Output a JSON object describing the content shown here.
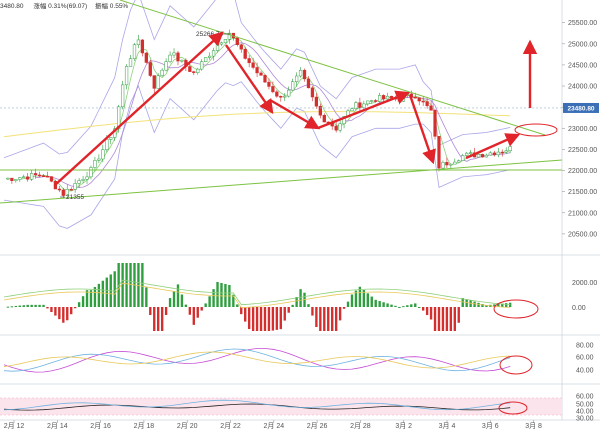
{
  "header": {
    "price_fragment": "3480.80",
    "change_label": "涨幅",
    "change_value": "0.31%(69.07)",
    "amplitude_label": "振幅",
    "amplitude_value": "0.55%"
  },
  "chart_data": {
    "type": "candlestick",
    "title": "",
    "ylim": [
      20000,
      25800
    ],
    "y_ticks": [
      "25500.00",
      "25000.00",
      "24500.00",
      "24000.00",
      "23500.00",
      "23000.00",
      "22500.00",
      "22000.00",
      "21500.00",
      "21000.00",
      "20500.00"
    ],
    "x_ticks": [
      "2月 12",
      "2月 14",
      "2月 16",
      "2月 18",
      "2月 20",
      "2月 22",
      "2月 24",
      "2月 26",
      "2月 28",
      "3月 2",
      "3月 4",
      "3月 6",
      "3月 8"
    ],
    "last_price_label": "23480.80",
    "annotations": {
      "high": "25266.74",
      "low": "21355"
    },
    "colors": {
      "up": "#2e9e3e",
      "down": "#d32f2f",
      "trendline": "#7dc242",
      "arrow": "#e0242a",
      "band": "#a9a6e8",
      "ma_yellow": "#f2e27a"
    }
  },
  "indicators": {
    "macd": {
      "ticks": [
        "2000.00",
        "0.00"
      ]
    },
    "osc1": {
      "ticks": [
        "80.00",
        "60.00",
        "40.00"
      ]
    },
    "osc2": {
      "ticks": [
        "60.00",
        "50.00",
        "40.00",
        "30.00"
      ]
    }
  }
}
